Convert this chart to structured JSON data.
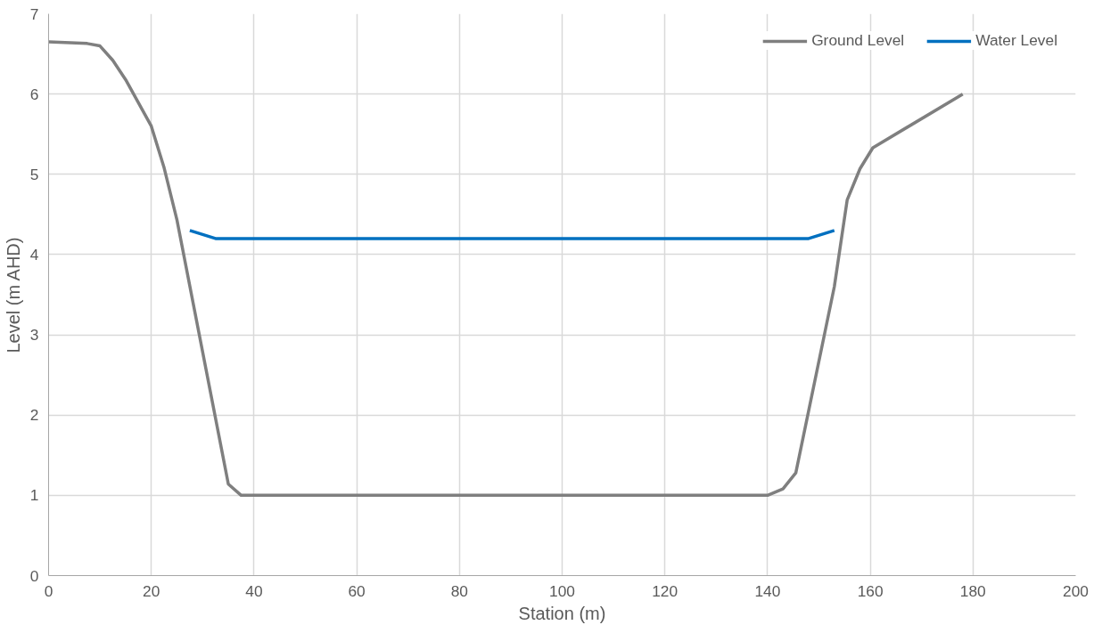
{
  "chart_data": {
    "type": "line",
    "xlabel": "Station (m)",
    "ylabel": "Level (m AHD)",
    "xlim": [
      0,
      200
    ],
    "ylim": [
      0,
      7
    ],
    "xticks": [
      0,
      20,
      40,
      60,
      80,
      100,
      120,
      140,
      160,
      180,
      200
    ],
    "yticks": [
      0,
      1,
      2,
      3,
      4,
      5,
      6,
      7
    ],
    "grid": true,
    "legend": "top right",
    "marker": "none",
    "line_style": "solid",
    "series": [
      {
        "name": "Ground Level",
        "color": "#7f7f7f",
        "x": [
          0,
          7.5,
          10,
          12.5,
          15,
          20,
          22.5,
          25,
          35,
          37.5,
          140,
          143,
          145.5,
          153,
          155.5,
          158,
          160.5,
          178
        ],
        "values": [
          6.65,
          6.63,
          6.6,
          6.42,
          6.18,
          5.6,
          5.08,
          4.43,
          1.14,
          1.0,
          1.0,
          1.08,
          1.28,
          3.6,
          4.68,
          5.07,
          5.33,
          6.0
        ]
      },
      {
        "name": "Water Level",
        "color": "#0070c0",
        "x": [
          27.5,
          32.5,
          148,
          150.5,
          153
        ],
        "values": [
          4.3,
          4.2,
          4.2,
          4.25,
          4.3
        ]
      }
    ]
  }
}
